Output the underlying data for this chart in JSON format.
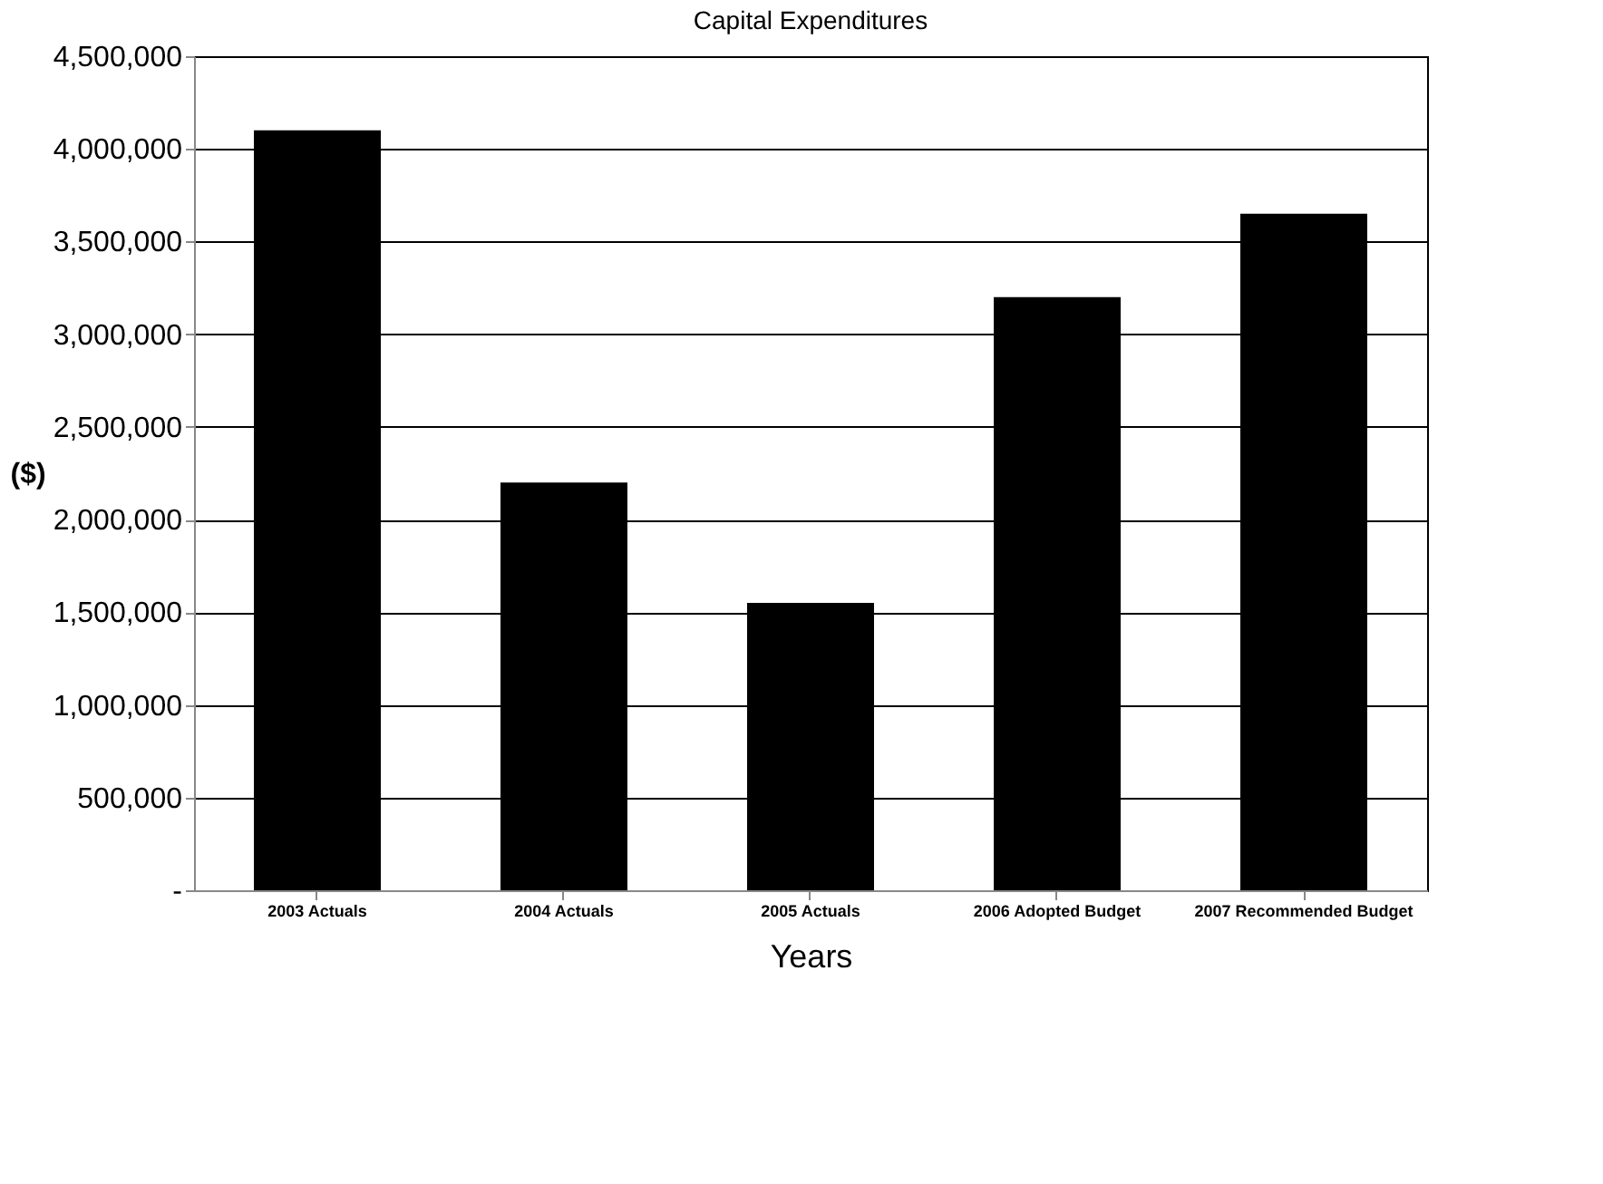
{
  "chart_data": {
    "type": "bar",
    "title": "Capital Expenditures",
    "xlabel": "Years",
    "ylabel": "($)",
    "categories": [
      "2003 Actuals",
      "2004 Actuals",
      "2005 Actuals",
      "2006 Adopted Budget",
      "2007 Recommended Budget"
    ],
    "values": [
      4100000,
      2200000,
      1550000,
      3200000,
      3650000
    ],
    "color": "#000000",
    "ylim": [
      0,
      4500000
    ],
    "yticks": [
      {
        "value": 0,
        "label": "-"
      },
      {
        "value": 500000,
        "label": "500,000"
      },
      {
        "value": 1000000,
        "label": "1,000,000"
      },
      {
        "value": 1500000,
        "label": "1,500,000"
      },
      {
        "value": 2000000,
        "label": "2,000,000"
      },
      {
        "value": 2500000,
        "label": "2,500,000"
      },
      {
        "value": 3000000,
        "label": "3,000,000"
      },
      {
        "value": 3500000,
        "label": "3,500,000"
      },
      {
        "value": 4000000,
        "label": "4,000,000"
      },
      {
        "value": 4500000,
        "label": "4,500,000"
      }
    ],
    "grid": "y"
  }
}
